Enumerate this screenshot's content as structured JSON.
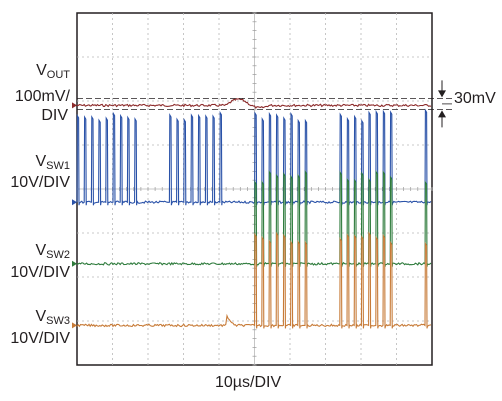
{
  "chart_data": {
    "type": "line",
    "title": "",
    "xlabel": "10µs/DIV",
    "x_divisions": 10,
    "y_divisions": 8,
    "grid": true,
    "channels": [
      {
        "key": "vout",
        "name_main": "V",
        "name_sub": "OUT",
        "scale": "100mV/",
        "scale2": "DIV",
        "color": "#8c2a2a",
        "baseline_div": 5.9,
        "waveform": "ripple with a small transient bump at about 4.7 div then settles",
        "annotation": "30mV"
      },
      {
        "key": "vsw1",
        "name_main": "V",
        "name_sub": "SW1",
        "scale": "10V/DIV",
        "scale2": "",
        "color": "#2a52a8",
        "baseline_div": 3.7,
        "waveform": "switching pulses across whole record"
      },
      {
        "key": "vsw2",
        "name_main": "V",
        "name_sub": "SW2",
        "scale": "10V/DIV",
        "scale2": "",
        "color": "#2e7b3c",
        "baseline_div": 2.3,
        "start_div": 4.2,
        "waveform": "flat low, then switching pulses start at about 4.2 div"
      },
      {
        "key": "vsw3",
        "name_main": "V",
        "name_sub": "SW3",
        "scale": "10V/DIV",
        "scale2": "",
        "color": "#c77b38",
        "baseline_div": 0.9,
        "start_div": 4.2,
        "waveform": "flat low, then switching pulses start at about 4.2 div"
      }
    ],
    "annotation": {
      "text": "30mV",
      "channel": "vout"
    }
  }
}
